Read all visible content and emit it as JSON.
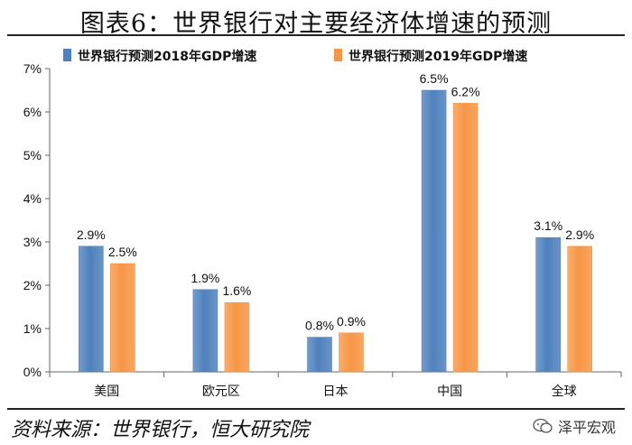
{
  "header": {
    "title": "图表6：世界银行对主要经济体增速的预测"
  },
  "footer": {
    "source": "资料来源：世界银行，恒大研究院",
    "watermark": "泽平宏观"
  },
  "colors": {
    "series_2018": "#4f81bd",
    "series_2019": "#f79646"
  },
  "chart_data": {
    "type": "bar",
    "categories": [
      "美国",
      "欧元区",
      "日本",
      "中国",
      "全球"
    ],
    "series": [
      {
        "name": "世界银行预测2018年GDP增速",
        "values": [
          2.9,
          1.9,
          0.8,
          6.5,
          3.1
        ],
        "labels": [
          "2.9%",
          "1.9%",
          "0.8%",
          "6.5%",
          "3.1%"
        ]
      },
      {
        "name": "世界银行预测2019年GDP增速",
        "values": [
          2.5,
          1.6,
          0.9,
          6.2,
          2.9
        ],
        "labels": [
          "2.5%",
          "1.6%",
          "0.9%",
          "6.2%",
          "2.9%"
        ]
      }
    ],
    "ylim": [
      0,
      7
    ],
    "yticks": [
      "0%",
      "1%",
      "2%",
      "3%",
      "4%",
      "5%",
      "6%",
      "7%"
    ],
    "legend": "top-left",
    "grid": false
  }
}
